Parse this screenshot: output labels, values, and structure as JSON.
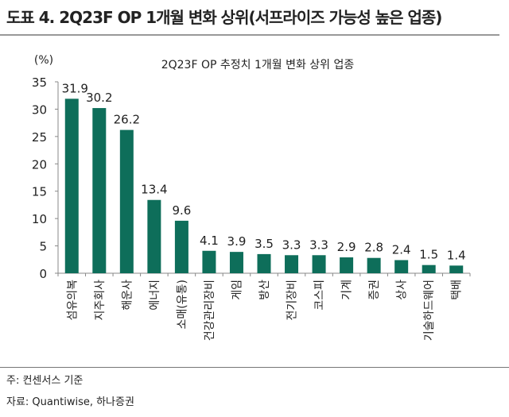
{
  "figure_title": "도표 4. 2Q23F OP 1개월 변화 상위(서프라이즈 가능성 높은 업종)",
  "note": "주: 컨센서스 기준",
  "source": "자료: Quantiwise, 하나증권",
  "chart_data": {
    "type": "bar",
    "title": "2Q23F OP 추정치 1개월 변화 상위 업종",
    "ylabel": "(%)",
    "xlabel": "",
    "ylim": [
      0,
      35
    ],
    "yticks": [
      0,
      5,
      10,
      15,
      20,
      25,
      30,
      35
    ],
    "grid": false,
    "bar_color": "#0e6e5a",
    "categories": [
      "섬유의복",
      "지주회사",
      "해운사",
      "에너지",
      "소매(유통)",
      "건강관리장비",
      "게임",
      "방산",
      "전기장비",
      "코스피",
      "기계",
      "증권",
      "상사",
      "기술하드웨어",
      "택배"
    ],
    "values": [
      31.9,
      30.2,
      26.2,
      13.4,
      9.6,
      4.1,
      3.9,
      3.5,
      3.3,
      3.3,
      2.9,
      2.8,
      2.4,
      1.5,
      1.4
    ],
    "data_labels": [
      "31.9",
      "30.2",
      "26.2",
      "13.4",
      "9.6",
      "4.1",
      "3.9",
      "3.5",
      "3.3",
      "3.3",
      "2.9",
      "2.8",
      "2.4",
      "1.5",
      "1.4"
    ]
  }
}
